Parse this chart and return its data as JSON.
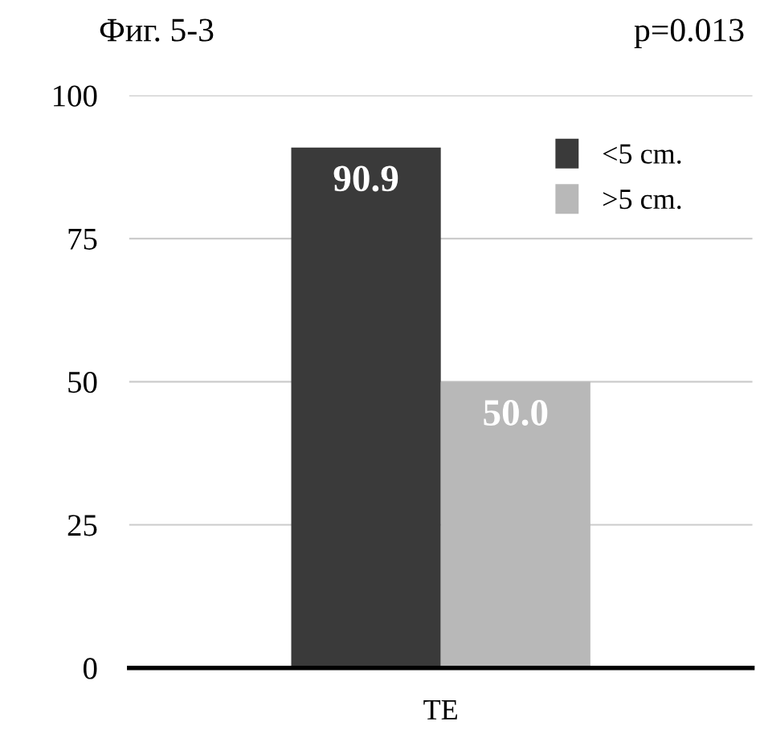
{
  "chart_data": {
    "type": "bar",
    "title": "Фиг. 5-3",
    "annotations": [
      "p=0.013"
    ],
    "categories": [
      "TE"
    ],
    "series": [
      {
        "name": "<5 cm.",
        "color": "#3a3a3a",
        "values": [
          90.9
        ],
        "value_labels": [
          "90.9"
        ]
      },
      {
        "name": ">5 cm.",
        "color": "#b8b8b8",
        "values": [
          50.0
        ],
        "value_labels": [
          "50.0"
        ]
      }
    ],
    "ylim": [
      0,
      100
    ],
    "yticks": [
      0,
      25,
      50,
      75,
      100
    ],
    "grid": "y",
    "legend": "top right"
  }
}
